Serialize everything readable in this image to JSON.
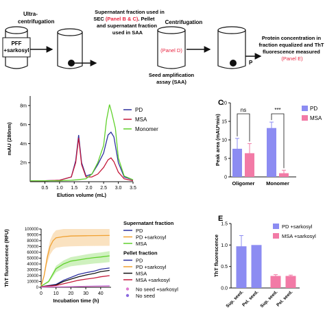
{
  "schematic": {
    "tube1_label": "PFF\n+sarkosyl",
    "step1_label": "Ultra-\ncentrifugation",
    "step2_line1": "Supernatant fraction used in",
    "step2_line2_prefix": "SEC ",
    "step2_line2_red": "(Panel B & C)",
    "step2_line2_suffix": ". Pellet",
    "step2_line3": "and supernatant fraction",
    "step2_line4": "used in SAA",
    "tube3_label": "(Panel D)",
    "saa_label": "Seed amplification\nassay (SAA)",
    "step3_label": "Centrifugation",
    "pellet_p": "P",
    "final_line1": "Protein concentration in",
    "final_line2": "fraction equalized and ThT",
    "final_line3": "fluorescence measured",
    "final_red": "(Panel E)",
    "red_color": "#e8233f"
  },
  "panels": {
    "C_letter": "C",
    "E_letter": "E"
  },
  "chart_data": [
    {
      "type": "line",
      "panel": "B",
      "xlabel": "Elution volume (mL)",
      "ylabel": "mAU (280nm)",
      "xticks": [
        "0.5",
        "1.0",
        "1.5",
        "2.0",
        "2.5",
        "3.0",
        "3.5"
      ],
      "yticks": [
        "2m",
        "4m",
        "6m",
        "8m"
      ],
      "xlim": [
        0.0,
        3.5
      ],
      "ylim": [
        0,
        9
      ],
      "legend_position": "top-right",
      "series": [
        {
          "name": "PD",
          "color": "#2b2f9e",
          "points": [
            [
              0,
              0.1
            ],
            [
              0.5,
              0.1
            ],
            [
              1.0,
              0.15
            ],
            [
              1.4,
              0.5
            ],
            [
              1.55,
              2.2
            ],
            [
              1.65,
              4.9
            ],
            [
              1.75,
              2.0
            ],
            [
              1.9,
              0.6
            ],
            [
              2.1,
              0.8
            ],
            [
              2.3,
              1.8
            ],
            [
              2.5,
              3.0
            ],
            [
              2.65,
              4.9
            ],
            [
              2.75,
              5.2
            ],
            [
              2.85,
              4.7
            ],
            [
              3.0,
              2.0
            ],
            [
              3.2,
              0.5
            ],
            [
              3.5,
              0.2
            ]
          ]
        },
        {
          "name": "MSA",
          "color": "#c4193a",
          "points": [
            [
              0,
              0.1
            ],
            [
              0.5,
              0.1
            ],
            [
              1.0,
              0.15
            ],
            [
              1.4,
              0.5
            ],
            [
              1.55,
              2.0
            ],
            [
              1.65,
              4.6
            ],
            [
              1.75,
              1.8
            ],
            [
              1.9,
              0.5
            ],
            [
              2.1,
              0.5
            ],
            [
              2.3,
              0.8
            ],
            [
              2.5,
              1.5
            ],
            [
              2.65,
              2.3
            ],
            [
              2.75,
              2.5
            ],
            [
              2.85,
              2.1
            ],
            [
              3.0,
              1.0
            ],
            [
              3.2,
              0.3
            ],
            [
              3.5,
              0.1
            ]
          ]
        },
        {
          "name": "Monomer",
          "color": "#5fd12a",
          "points": [
            [
              0,
              0.1
            ],
            [
              0.5,
              0.1
            ],
            [
              1.0,
              0.1
            ],
            [
              1.4,
              0.15
            ],
            [
              1.6,
              0.2
            ],
            [
              1.9,
              0.3
            ],
            [
              2.1,
              0.8
            ],
            [
              2.3,
              2.0
            ],
            [
              2.5,
              3.8
            ],
            [
              2.6,
              6.5
            ],
            [
              2.7,
              8.1
            ],
            [
              2.78,
              7.2
            ],
            [
              2.9,
              5.6
            ],
            [
              3.0,
              2.5
            ],
            [
              3.2,
              0.6
            ],
            [
              3.5,
              0.2
            ]
          ]
        }
      ]
    },
    {
      "type": "bar",
      "panel": "C",
      "ylabel": "Peak area (mAU*min)",
      "categories": [
        "Oligomer",
        "Monomer"
      ],
      "yticks": [
        "0",
        "5",
        "10",
        "15",
        "20"
      ],
      "ylim": [
        0,
        20
      ],
      "legend_position": "top-right",
      "series": [
        {
          "name": "PD",
          "color": "#8c8cf2",
          "values": [
            7.6,
            13.2
          ],
          "errors": [
            2.8,
            1.6
          ]
        },
        {
          "name": "MSA",
          "color": "#f27aa6",
          "values": [
            6.4,
            1.0
          ],
          "errors": [
            2.6,
            0.8
          ]
        }
      ],
      "annotations": [
        "ns",
        "***"
      ]
    },
    {
      "type": "line",
      "panel": "D",
      "xlabel": "Incubation time (h)",
      "ylabel": "ThT fluorescence (RFU)",
      "xticks": [
        "0",
        "10",
        "20",
        "30",
        "40"
      ],
      "yticks": [
        "0",
        "10000",
        "20000",
        "30000",
        "40000",
        "50000",
        "60000",
        "70000",
        "80000",
        "90000",
        "100000"
      ],
      "xlim": [
        0,
        47
      ],
      "ylim": [
        0,
        100000
      ],
      "legend_groups": [
        {
          "title": "Supernatant fraction",
          "items": [
            {
              "name": "PD",
              "color": "#2b2f9e",
              "style": "solid"
            },
            {
              "name": "PD +sarkosyl",
              "color": "#f0a030",
              "style": "solid"
            },
            {
              "name": "MSA",
              "color": "#5fd12a",
              "style": "solid"
            }
          ]
        },
        {
          "title": "Pellet fraction",
          "items": [
            {
              "name": "PD",
              "color": "#2b2f9e",
              "style": "solid"
            },
            {
              "name": "PD +sarkosyl",
              "color": "#f0a030",
              "style": "solid"
            },
            {
              "name": "MSA",
              "color": "#111111",
              "style": "solid"
            },
            {
              "name": "MSA +sarkosyl",
              "color": "#c4193a",
              "style": "solid"
            }
          ]
        },
        {
          "title": "",
          "items": [
            {
              "name": "No seed +sarkosyl",
              "color": "#e07ad0",
              "style": "dot"
            },
            {
              "name": "No seed",
              "color": "#8a6adf",
              "style": "dot"
            }
          ]
        }
      ],
      "series": [
        {
          "name": "PD +sarkosyl",
          "color": "#f0a030",
          "band": true,
          "points": [
            [
              0,
              2000
            ],
            [
              2,
              20000
            ],
            [
              4,
              50000
            ],
            [
              6,
              70000
            ],
            [
              8,
              80000
            ],
            [
              10,
              85000
            ],
            [
              15,
              87000
            ],
            [
              20,
              88000
            ],
            [
              30,
              88500
            ],
            [
              46,
              89000
            ]
          ]
        },
        {
          "name": "MSA",
          "color": "#5fd12a",
          "band": true,
          "points": [
            [
              0,
              2000
            ],
            [
              5,
              10000
            ],
            [
              10,
              32000
            ],
            [
              15,
              40000
            ],
            [
              20,
              45000
            ],
            [
              25,
              47000
            ],
            [
              30,
              49000
            ],
            [
              36,
              51000
            ],
            [
              40,
              52000
            ],
            [
              46,
              54000
            ]
          ]
        },
        {
          "name": "PD",
          "color": "#2b2f9e",
          "band": false,
          "points": [
            [
              0,
              1000
            ],
            [
              10,
              5000
            ],
            [
              15,
              12000
            ],
            [
              20,
              17000
            ],
            [
              25,
              22000
            ],
            [
              30,
              25000
            ],
            [
              36,
              28000
            ],
            [
              40,
              31000
            ],
            [
              46,
              33000
            ]
          ]
        },
        {
          "name": "MSA",
          "color": "#111111",
          "band": false,
          "points": [
            [
              0,
              1000
            ],
            [
              10,
              4000
            ],
            [
              15,
              10000
            ],
            [
              20,
              14000
            ],
            [
              25,
              18000
            ],
            [
              30,
              21000
            ],
            [
              36,
              24000
            ],
            [
              40,
              27000
            ],
            [
              46,
              29000
            ]
          ]
        },
        {
          "name": "MSA +sarkosyl",
          "color": "#c4193a",
          "band": false,
          "points": [
            [
              0,
              1000
            ],
            [
              10,
              3000
            ],
            [
              15,
              6000
            ],
            [
              20,
              9000
            ],
            [
              25,
              12000
            ],
            [
              30,
              14000
            ],
            [
              36,
              16000
            ],
            [
              40,
              18000
            ],
            [
              46,
              20000
            ]
          ]
        },
        {
          "name": "No seed",
          "color": "#8a6adf",
          "band": false,
          "points": [
            [
              0,
              500
            ],
            [
              10,
              800
            ],
            [
              20,
              1200
            ],
            [
              30,
              1800
            ],
            [
              46,
              2500
            ]
          ]
        },
        {
          "name": "No seed +sarkosyl",
          "color": "#e07ad0",
          "band": false,
          "points": [
            [
              0,
              500
            ],
            [
              10,
              700
            ],
            [
              20,
              1000
            ],
            [
              30,
              1500
            ],
            [
              46,
              2000
            ]
          ]
        }
      ]
    },
    {
      "type": "bar",
      "panel": "E",
      "ylabel": "ThT fluorescence",
      "categories": [
        "Sup. seed.",
        "Pel. seed.",
        "Sup. seed.",
        "Pel. seed."
      ],
      "yticks": [
        "0.0",
        "0.5",
        "1.0",
        "1.5"
      ],
      "ylim": [
        0,
        1.5
      ],
      "legend_position": "top-right",
      "bar_colors": [
        "#8c8cf2",
        "#8c8cf2",
        "#f27aa6",
        "#f27aa6"
      ],
      "values": [
        0.97,
        1.0,
        0.28,
        0.28
      ],
      "errors": [
        0.25,
        0.0,
        0.03,
        0.02
      ],
      "legend": [
        {
          "name": "PD +sarkosyl",
          "color": "#8c8cf2"
        },
        {
          "name": "MSA +sarkosyl",
          "color": "#f27aa6"
        }
      ]
    }
  ]
}
